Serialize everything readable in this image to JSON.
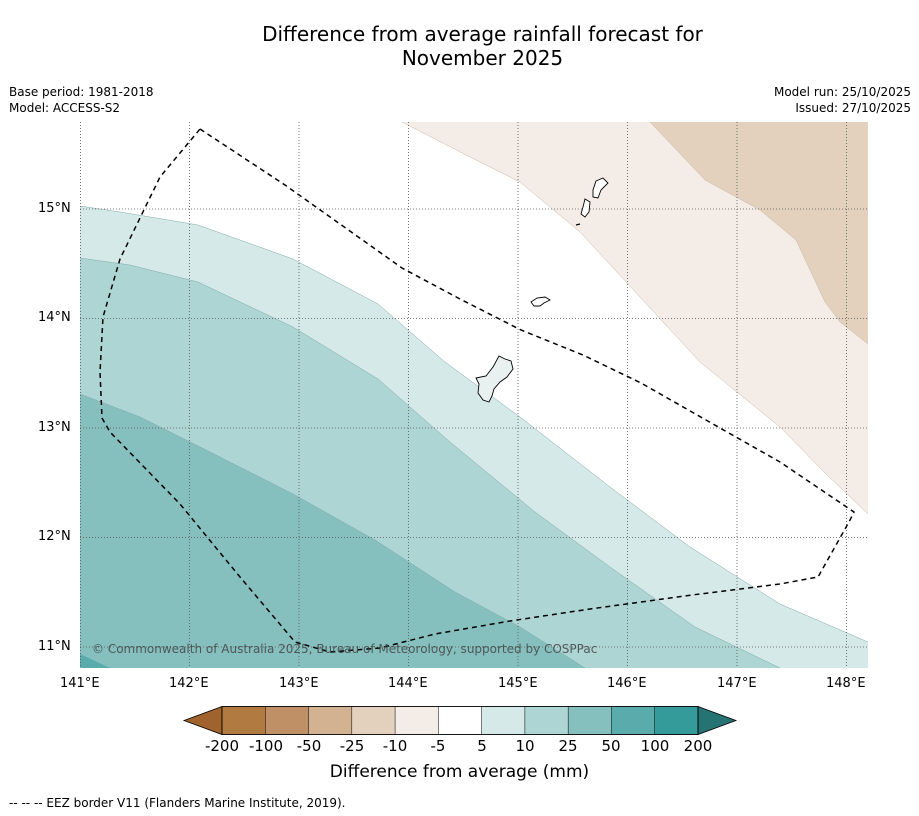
{
  "title": {
    "line1": "Difference from average rainfall forecast for",
    "line2": "November 2025"
  },
  "info_left": {
    "base_period": "Base period: 1981-2018",
    "model": "Model: ACCESS-S2"
  },
  "info_right": {
    "model_run": "Model run: 25/10/2025",
    "issued": "Issued: 27/10/2025"
  },
  "map": {
    "lon_range": [
      141.0,
      148.2
    ],
    "lat_range": [
      10.8,
      15.8
    ],
    "lon_ticks": [
      {
        "value": 141,
        "label": "141°E"
      },
      {
        "value": 142,
        "label": "142°E"
      },
      {
        "value": 143,
        "label": "143°E"
      },
      {
        "value": 144,
        "label": "144°E"
      },
      {
        "value": 145,
        "label": "145°E"
      },
      {
        "value": 146,
        "label": "146°E"
      },
      {
        "value": 147,
        "label": "147°E"
      },
      {
        "value": 148,
        "label": "148°E"
      }
    ],
    "lat_ticks": [
      {
        "value": 15,
        "label": "15°N"
      },
      {
        "value": 14,
        "label": "14°N"
      },
      {
        "value": 13,
        "label": "13°N"
      },
      {
        "value": 12,
        "label": "12°N"
      },
      {
        "value": 11,
        "label": "11°N"
      }
    ],
    "copyright": "© Commonwealth of Australia 2025, Bureau of Meteorology, supported by COSPPac"
  },
  "legend": {
    "labels": [
      "-200",
      "-100",
      "-50",
      "-25",
      "-10",
      "-5",
      "5",
      "10",
      "25",
      "50",
      "100",
      "200"
    ],
    "colors": [
      "#a0632d",
      "#b07a41",
      "#bf9066",
      "#d3b292",
      "#e3d0bd",
      "#f4ece6",
      "#ffffff",
      "#d5e9e8",
      "#acd5d4",
      "#85c0bf",
      "#5aacac",
      "#359a9a",
      "#267373"
    ],
    "unit_label": "Difference from average (mm)"
  },
  "footnote": "-- -- -- EEZ border V11 (Flanders Marine Institute, 2019)."
}
